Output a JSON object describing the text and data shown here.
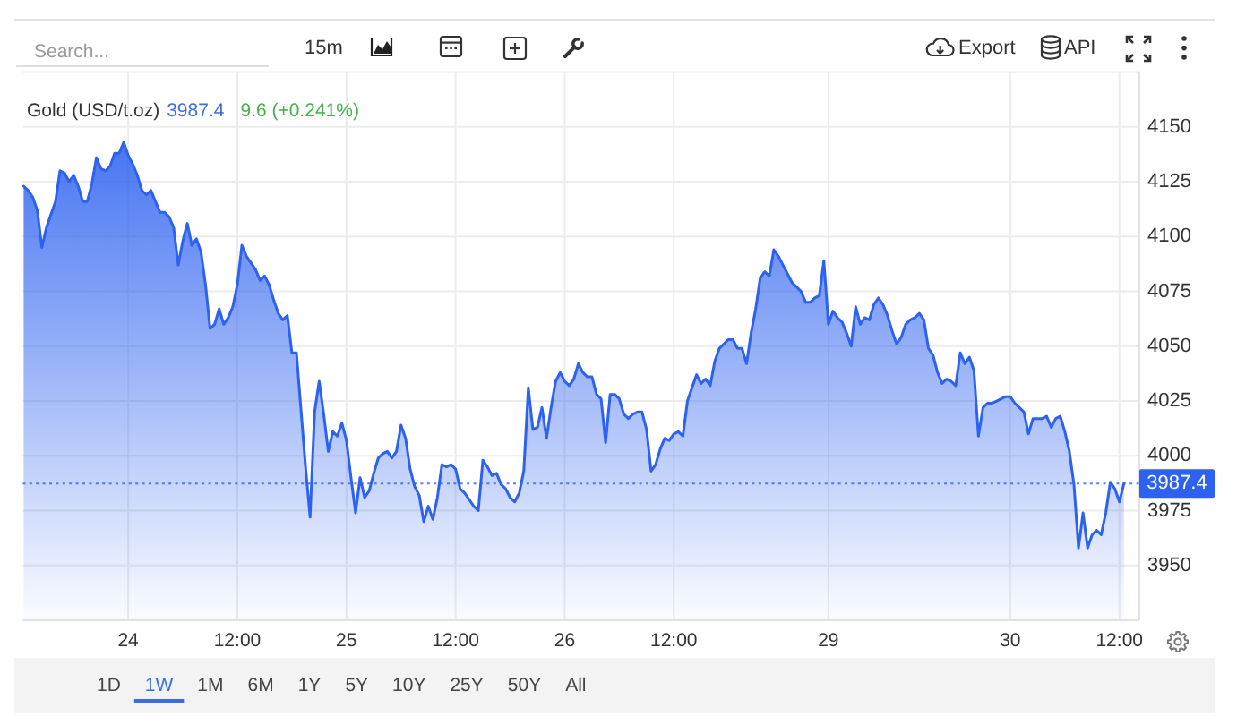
{
  "chart_data": {
    "type": "area",
    "title": "Gold (USD/t.oz)",
    "annotations": [
      "3987.4",
      "9.6 (+0.241%)",
      "Search...",
      "15m",
      "Export",
      "API",
      "1D",
      "1W",
      "1M",
      "6M",
      "1Y",
      "5Y",
      "10Y",
      "25Y",
      "50Y",
      "All"
    ],
    "color": "#2d62f0",
    "categories": [
      null,
      null,
      null,
      null,
      null,
      null,
      null,
      null,
      null,
      null,
      null,
      null,
      null,
      null,
      null,
      null,
      null,
      null,
      null,
      null,
      null,
      null,
      null,
      "24",
      null,
      null,
      null,
      null,
      null,
      null,
      null,
      null,
      null,
      null,
      null,
      null,
      null,
      null,
      null,
      null,
      null,
      null,
      null,
      null,
      null,
      null,
      null,
      "12:00",
      null,
      null,
      null,
      null,
      null,
      null,
      null,
      null,
      null,
      null,
      null,
      null,
      null,
      null,
      null,
      null,
      null,
      null,
      null,
      null,
      null,
      null,
      null,
      "25",
      null,
      null,
      null,
      null,
      null,
      null,
      null,
      null,
      null,
      null,
      null,
      null,
      null,
      null,
      null,
      null,
      null,
      null,
      null,
      null,
      null,
      null,
      null,
      "12:00",
      null,
      null,
      null,
      null,
      null,
      null,
      null,
      null,
      null,
      null,
      null,
      null,
      null,
      null,
      null,
      null,
      null,
      null,
      null,
      null,
      null,
      null,
      null,
      "26",
      null,
      null,
      null,
      null,
      null,
      null,
      null,
      null,
      null,
      null,
      null,
      null,
      null,
      null,
      null,
      null,
      null,
      null,
      null,
      null,
      null,
      null,
      null,
      "12:00",
      null,
      null,
      null,
      null,
      null,
      null,
      null,
      null,
      null,
      null,
      null,
      null,
      null,
      null,
      null,
      null,
      null,
      null,
      null,
      null,
      null,
      null,
      null,
      null,
      null,
      null,
      null,
      null,
      null,
      null,
      null,
      null,
      null,
      "29",
      null,
      null,
      null,
      null,
      null,
      null,
      null,
      null,
      null,
      null,
      null,
      null,
      null,
      null,
      null,
      null,
      null,
      null,
      null,
      null,
      null,
      null,
      null,
      null,
      null,
      null,
      null,
      null,
      null,
      null,
      null,
      null,
      null,
      null,
      null,
      null,
      null,
      null,
      null,
      "30",
      null,
      null,
      null,
      null,
      null,
      null,
      null,
      null,
      null,
      null,
      null,
      null,
      null,
      null,
      null,
      null,
      null,
      null,
      null,
      null,
      null,
      null,
      null,
      "12:00",
      null
    ],
    "values": [
      4123,
      4121,
      4118,
      4112,
      4095,
      4104,
      4110,
      4116,
      4130,
      4129,
      4125,
      4128,
      4123,
      4116,
      4116,
      4124,
      4136,
      4131,
      4130,
      4132,
      4138,
      4138,
      4143,
      4137,
      4133,
      4128,
      4121,
      4119,
      4121,
      4116,
      4111,
      4111,
      4109,
      4104,
      4087,
      4098,
      4106,
      4096,
      4099,
      4093,
      4078,
      4058,
      4060,
      4067,
      4060,
      4063,
      4068,
      4078,
      4096,
      4091,
      4088,
      4085,
      4080,
      4082,
      4078,
      4071,
      4065,
      4062,
      4064,
      4047,
      4047,
      4021,
      3995,
      3972,
      4020,
      4034,
      4019,
      4002,
      4011,
      4009,
      4015,
      4007,
      3990,
      3974,
      3990,
      3981,
      3984,
      3992,
      3999,
      4001,
      4002,
      3999,
      4002,
      4014,
      4008,
      3994,
      3986,
      3982,
      3970,
      3977,
      3971,
      3981,
      3996,
      3995,
      3996,
      3994,
      3985,
      3983,
      3980,
      3977,
      3975,
      3998,
      3995,
      3991,
      3992,
      3987,
      3985,
      3981,
      3979,
      3983,
      3993,
      4031,
      4012,
      4013,
      4022,
      4008,
      4022,
      4034,
      4038,
      4034,
      4032,
      4035,
      4042,
      4038,
      4036,
      4036,
      4028,
      4026,
      4006,
      4028,
      4028,
      4026,
      4019,
      4017,
      4019,
      4020,
      4020,
      4012,
      3993,
      3996,
      4003,
      4008,
      4007,
      4010,
      4011,
      4009,
      4025,
      4031,
      4037,
      4033,
      4035,
      4032,
      4043,
      4049,
      4051,
      4053,
      4053,
      4049,
      4049,
      4042,
      4056,
      4067,
      4081,
      4084,
      4082,
      4094,
      4091,
      4087,
      4083,
      4079,
      4077,
      4075,
      4070,
      4070,
      4072,
      4073,
      4089,
      4060,
      4066,
      4063,
      4061,
      4056,
      4050,
      4068,
      4060,
      4063,
      4062,
      4069,
      4072,
      4069,
      4064,
      4057,
      4051,
      4054,
      4060,
      4062,
      4063,
      4065,
      4062,
      4049,
      4046,
      4038,
      4033,
      4035,
      4034,
      4032,
      4047,
      4042,
      4045,
      4039,
      4009,
      4022,
      4024,
      4024,
      4025,
      4026,
      4027,
      4027,
      4024,
      4022,
      4020,
      4010,
      4017,
      4017,
      4017,
      4018,
      4013,
      4017,
      4018,
      4011,
      4002,
      3987,
      3958,
      3974,
      3958,
      3964,
      3966,
      3964,
      3974,
      3988,
      3985,
      3979,
      3987.4
    ],
    "ylim": [
      3925,
      4175
    ],
    "yticks": [
      3950,
      3975,
      4000,
      4025,
      4050,
      4075,
      4100,
      4125,
      4150
    ],
    "grid": true,
    "ref_lines": [
      {
        "axis": "y",
        "value": 3987.4,
        "label": "3987.4",
        "color": "#2d62f0",
        "line_style": "dotted"
      }
    ]
  }
}
